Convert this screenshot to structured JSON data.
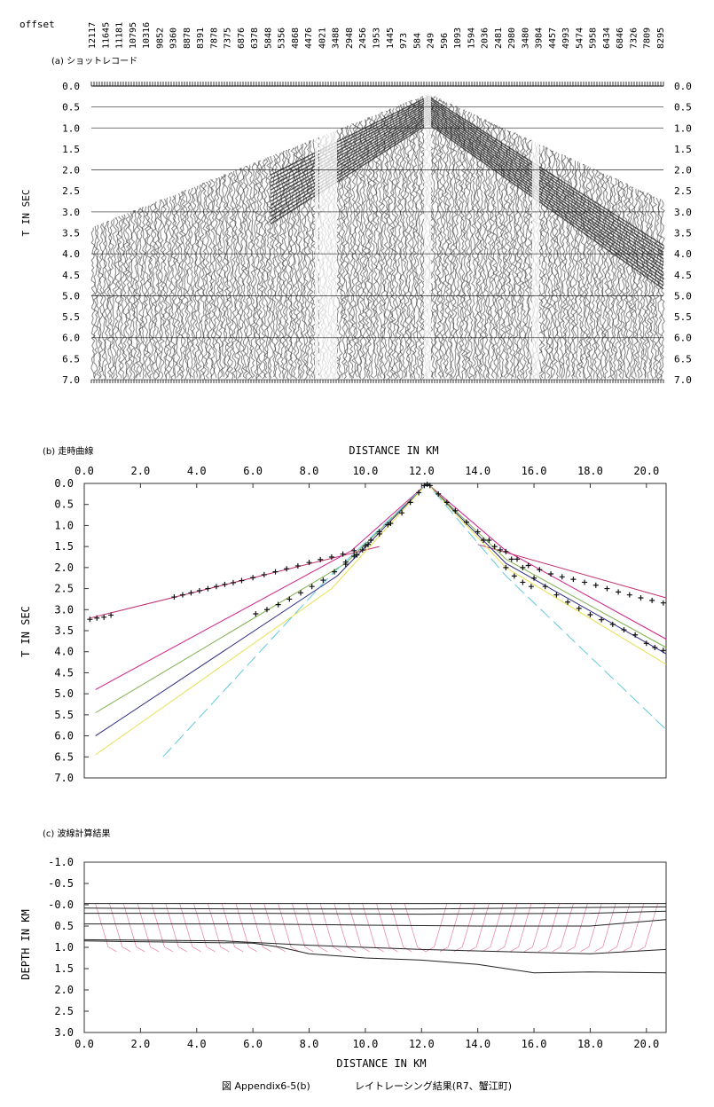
{
  "offset_label": "offset",
  "offsets": [
    "12117",
    "11645",
    "11181",
    "10795",
    "10316",
    "9852",
    "9360",
    "8878",
    "8391",
    "7878",
    "7375",
    "6876",
    "6378",
    "5848",
    "5356",
    "4868",
    "4476",
    "4021",
    "3488",
    "2948",
    "2456",
    "1953",
    "1445",
    "973",
    "584",
    "249",
    "596",
    "1093",
    "1594",
    "2036",
    "2481",
    "2980",
    "3480",
    "3984",
    "4457",
    "4993",
    "5474",
    "5958",
    "6434",
    "6846",
    "7326",
    "7809",
    "8295"
  ],
  "panel_a": {
    "title": "(a) ショットレコード",
    "ylabel": "T IN SEC",
    "yticks": [
      "0.0",
      "0.5",
      "1.0",
      "1.5",
      "2.0",
      "2.5",
      "3.0",
      "3.5",
      "4.0",
      "4.5",
      "5.0",
      "5.5",
      "6.0",
      "6.5",
      "7.0"
    ]
  },
  "panel_b": {
    "title": "(b) 走時曲線",
    "xlabel": "DISTANCE IN KM",
    "ylabel": "T IN SEC",
    "xticks": [
      "0.0",
      "2.0",
      "4.0",
      "6.0",
      "8.0",
      "10.0",
      "12.0",
      "14.0",
      "16.0",
      "18.0",
      "20.0"
    ],
    "yticks": [
      "0.0",
      "0.5",
      "1.0",
      "1.5",
      "2.0",
      "2.5",
      "3.0",
      "3.5",
      "4.0",
      "4.5",
      "5.0",
      "5.5",
      "6.0",
      "6.5",
      "7.0"
    ]
  },
  "panel_c": {
    "title": "(c) 波線計算結果",
    "xlabel": "DISTANCE IN KM",
    "ylabel": "DEPTH IN KM",
    "xticks": [
      "0.0",
      "2.0",
      "4.0",
      "6.0",
      "8.0",
      "10.0",
      "12.0",
      "14.0",
      "16.0",
      "18.0",
      "20.0"
    ],
    "yticks": [
      "-1.0",
      "-0.5",
      "-0.0",
      "0.5",
      "1.0",
      "1.5",
      "2.0",
      "2.5",
      "3.0"
    ]
  },
  "caption": {
    "figure_no": "図 Appendix6-5(b)",
    "text": "レイトレーシング結果(R7、蟹江町)"
  },
  "chart_data": [
    {
      "type": "heatmap",
      "name": "shot-record",
      "title": "(a) ショットレコード",
      "ylabel": "T IN SEC",
      "ylim": [
        0.0,
        7.0
      ],
      "first_arrival_apex": {
        "x_km": 12.2,
        "t_sec": 0.25
      }
    },
    {
      "type": "scatter",
      "name": "travel-time",
      "title": "(b) 走時曲線",
      "xlabel": "DISTANCE IN KM",
      "ylabel": "T IN SEC",
      "xlim": [
        0.0,
        20.7
      ],
      "ylim": [
        0.0,
        7.0
      ],
      "y_inverted": true,
      "observed_points": [
        [
          0.2,
          3.23
        ],
        [
          0.45,
          3.2
        ],
        [
          0.7,
          3.18
        ],
        [
          0.95,
          3.13
        ],
        [
          3.2,
          2.7
        ],
        [
          3.5,
          2.65
        ],
        [
          3.8,
          2.6
        ],
        [
          4.1,
          2.55
        ],
        [
          4.4,
          2.5
        ],
        [
          4.7,
          2.45
        ],
        [
          5.0,
          2.4
        ],
        [
          5.3,
          2.36
        ],
        [
          5.6,
          2.31
        ],
        [
          6.0,
          2.24
        ],
        [
          6.4,
          2.17
        ],
        [
          6.8,
          2.1
        ],
        [
          7.2,
          2.03
        ],
        [
          7.6,
          1.96
        ],
        [
          8.0,
          1.88
        ],
        [
          8.4,
          1.81
        ],
        [
          8.8,
          1.75
        ],
        [
          9.2,
          1.68
        ],
        [
          9.6,
          1.6
        ],
        [
          10.0,
          1.49
        ],
        [
          6.1,
          3.1
        ],
        [
          6.5,
          3.0
        ],
        [
          6.9,
          2.88
        ],
        [
          7.3,
          2.75
        ],
        [
          7.7,
          2.6
        ],
        [
          8.1,
          2.45
        ],
        [
          8.5,
          2.3
        ],
        [
          8.9,
          2.1
        ],
        [
          9.3,
          1.92
        ],
        [
          9.7,
          1.7
        ],
        [
          10.1,
          1.45
        ],
        [
          10.5,
          1.2
        ],
        [
          10.9,
          0.95
        ],
        [
          11.3,
          0.7
        ],
        [
          11.6,
          0.45
        ],
        [
          11.9,
          0.22
        ],
        [
          12.1,
          0.05
        ],
        [
          12.2,
          0.02
        ],
        [
          12.3,
          0.05
        ],
        [
          9.3,
          1.87
        ],
        [
          9.6,
          1.73
        ],
        [
          9.9,
          1.58
        ],
        [
          10.2,
          1.35
        ],
        [
          10.5,
          1.15
        ],
        [
          10.8,
          0.98
        ],
        [
          12.6,
          0.25
        ],
        [
          12.9,
          0.45
        ],
        [
          13.2,
          0.65
        ],
        [
          13.6,
          0.92
        ],
        [
          14.0,
          1.15
        ],
        [
          14.4,
          1.35
        ],
        [
          14.8,
          1.58
        ],
        [
          15.2,
          1.8
        ],
        [
          15.6,
          2.0
        ],
        [
          16.0,
          2.25
        ],
        [
          16.4,
          2.45
        ],
        [
          16.8,
          2.65
        ],
        [
          17.2,
          2.82
        ],
        [
          17.6,
          2.97
        ],
        [
          18.0,
          3.12
        ],
        [
          18.4,
          3.24
        ],
        [
          18.8,
          3.35
        ],
        [
          19.2,
          3.48
        ],
        [
          19.6,
          3.6
        ],
        [
          20.0,
          3.8
        ],
        [
          20.3,
          3.9
        ],
        [
          20.6,
          3.97
        ],
        [
          14.2,
          1.35
        ],
        [
          14.6,
          1.5
        ],
        [
          15.0,
          1.62
        ],
        [
          15.4,
          1.8
        ],
        [
          15.8,
          1.95
        ],
        [
          16.2,
          2.05
        ],
        [
          16.6,
          2.15
        ],
        [
          17.0,
          2.22
        ],
        [
          17.4,
          2.28
        ],
        [
          17.8,
          2.35
        ],
        [
          18.2,
          2.42
        ],
        [
          18.6,
          2.5
        ],
        [
          19.0,
          2.58
        ],
        [
          19.4,
          2.65
        ],
        [
          19.8,
          2.72
        ],
        [
          20.2,
          2.78
        ],
        [
          20.6,
          2.84
        ],
        [
          15.0,
          2.0
        ],
        [
          15.3,
          2.2
        ],
        [
          15.6,
          2.35
        ],
        [
          15.9,
          2.45
        ]
      ],
      "series": [
        {
          "color": "#c03070",
          "style": "solid",
          "points": [
            [
              0.2,
              3.2
            ],
            [
              10.5,
              1.5
            ]
          ]
        },
        {
          "color": "#c03070",
          "style": "solid",
          "points": [
            [
              14.0,
              1.45
            ],
            [
              20.7,
              2.72
            ]
          ]
        },
        {
          "color": "#d0208a",
          "style": "solid",
          "points": [
            [
              0.4,
              4.9
            ],
            [
              9.5,
              1.6
            ],
            [
              12.2,
              0.0
            ],
            [
              15.0,
              1.6
            ],
            [
              20.7,
              3.7
            ]
          ]
        },
        {
          "color": "#80b050",
          "style": "solid",
          "points": [
            [
              0.4,
              5.45
            ],
            [
              9.3,
              1.9
            ],
            [
              12.2,
              0.0
            ],
            [
              15.0,
              1.8
            ],
            [
              20.7,
              3.9
            ]
          ]
        },
        {
          "color": "#2a2a80",
          "style": "solid",
          "points": [
            [
              0.4,
              6.0
            ],
            [
              9.0,
              2.2
            ],
            [
              12.2,
              0.0
            ],
            [
              15.0,
              1.9
            ],
            [
              20.7,
              4.05
            ]
          ]
        },
        {
          "color": "#e8e050",
          "style": "solid",
          "points": [
            [
              0.4,
              6.45
            ],
            [
              8.8,
              2.5
            ],
            [
              12.2,
              0.0
            ],
            [
              15.0,
              2.0
            ],
            [
              20.7,
              4.3
            ]
          ]
        },
        {
          "color": "#60c8e0",
          "style": "dashed",
          "points": [
            [
              2.8,
              6.5
            ],
            [
              8.6,
              2.3
            ],
            [
              12.2,
              0.0
            ],
            [
              15.0,
              2.2
            ],
            [
              20.7,
              5.85
            ]
          ]
        }
      ]
    },
    {
      "type": "line",
      "name": "ray-tracing-model",
      "title": "(c) 波線計算結果",
      "xlabel": "DISTANCE IN KM",
      "ylabel": "DEPTH IN KM",
      "xlim": [
        0.0,
        20.7
      ],
      "ylim": [
        -1.0,
        3.0
      ],
      "y_inverted": true,
      "boundaries": [
        {
          "points": [
            [
              0,
              -0.03
            ],
            [
              20.7,
              -0.03
            ]
          ]
        },
        {
          "points": [
            [
              0,
              0.08
            ],
            [
              6,
              0.1
            ],
            [
              12,
              0.1
            ],
            [
              20.7,
              0.05
            ]
          ]
        },
        {
          "points": [
            [
              0,
              0.2
            ],
            [
              6,
              0.2
            ],
            [
              12,
              0.22
            ],
            [
              18,
              0.2
            ],
            [
              20.7,
              0.15
            ]
          ]
        },
        {
          "points": [
            [
              0,
              0.45
            ],
            [
              6,
              0.45
            ],
            [
              10,
              0.48
            ],
            [
              14,
              0.5
            ],
            [
              18,
              0.5
            ],
            [
              20.7,
              0.35
            ]
          ]
        },
        {
          "points": [
            [
              0,
              0.85
            ],
            [
              6,
              0.9
            ],
            [
              7,
              1.0
            ],
            [
              8,
              1.15
            ],
            [
              10,
              1.25
            ],
            [
              12,
              1.3
            ],
            [
              14,
              1.4
            ],
            [
              16,
              1.6
            ],
            [
              18,
              1.58
            ],
            [
              20.7,
              1.6
            ]
          ]
        },
        {
          "points": [
            [
              0,
              0.82
            ],
            [
              5,
              0.85
            ],
            [
              8,
              0.95
            ],
            [
              12,
              1.05
            ],
            [
              16,
              1.12
            ],
            [
              18,
              1.15
            ],
            [
              20.7,
              1.05
            ]
          ]
        }
      ],
      "rays": {
        "color": "#e05080",
        "source_x_km": 12.2,
        "max_depth_km": 1.1
      }
    }
  ]
}
